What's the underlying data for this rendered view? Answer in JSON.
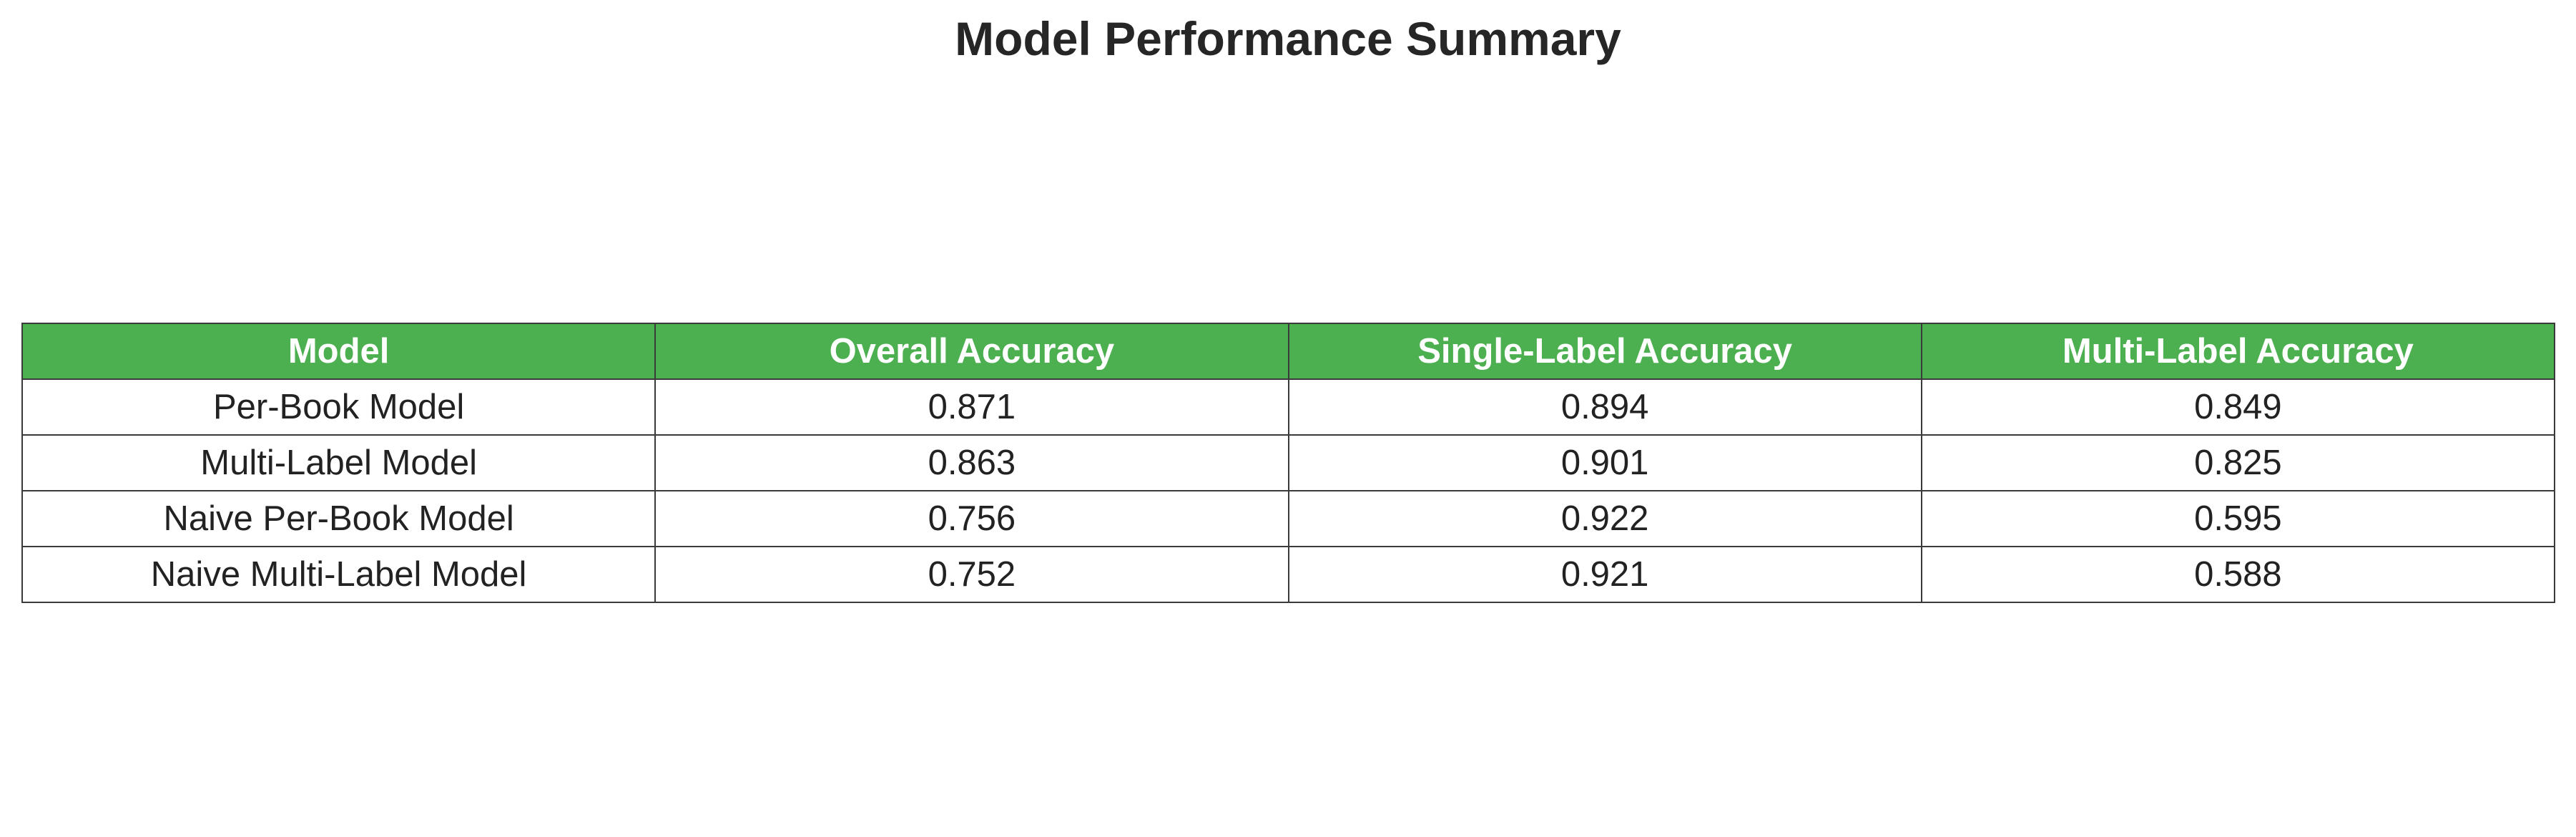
{
  "chart_data": {
    "type": "table",
    "title": "Model Performance Summary",
    "columns": [
      "Model",
      "Overall Accuracy",
      "Single-Label Accuracy",
      "Multi-Label Accuracy"
    ],
    "rows": [
      [
        "Per-Book Model",
        "0.871",
        "0.894",
        "0.849"
      ],
      [
        "Multi-Label Model",
        "0.863",
        "0.901",
        "0.825"
      ],
      [
        "Naive Per-Book Model",
        "0.756",
        "0.922",
        "0.595"
      ],
      [
        "Naive Multi-Label Model",
        "0.752",
        "0.921",
        "0.588"
      ]
    ],
    "header_color": "#4caf50",
    "header_text_color": "#ffffff"
  }
}
